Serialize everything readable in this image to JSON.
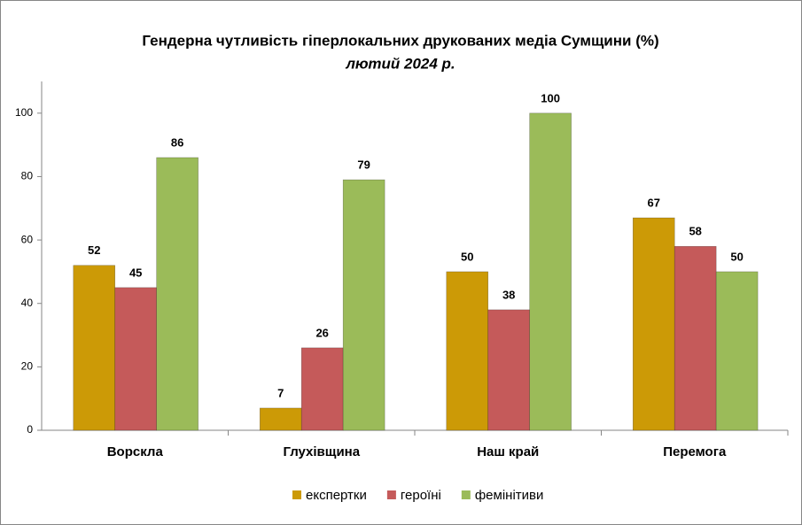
{
  "chart_data": {
    "type": "bar",
    "title": "Гендерна чутливість гіперлокальних друкованих медіа Сумщини (%)",
    "subtitle": "лютий 2024 р.",
    "categories": [
      "Ворскла",
      "Глухівщина",
      "Наш край",
      "Перемога"
    ],
    "series": [
      {
        "name": "експертки",
        "color": "#cc9a06",
        "values": [
          52,
          7,
          50,
          67
        ]
      },
      {
        "name": "героїні",
        "color": "#c55a5a",
        "values": [
          45,
          26,
          38,
          58
        ]
      },
      {
        "name": "фемінітиви",
        "color": "#9bbb59",
        "values": [
          86,
          79,
          100,
          50
        ]
      }
    ],
    "ylim": [
      0,
      110
    ],
    "yticks": [
      0,
      20,
      40,
      60,
      80,
      100
    ],
    "grid": false,
    "legend": "bottom"
  }
}
